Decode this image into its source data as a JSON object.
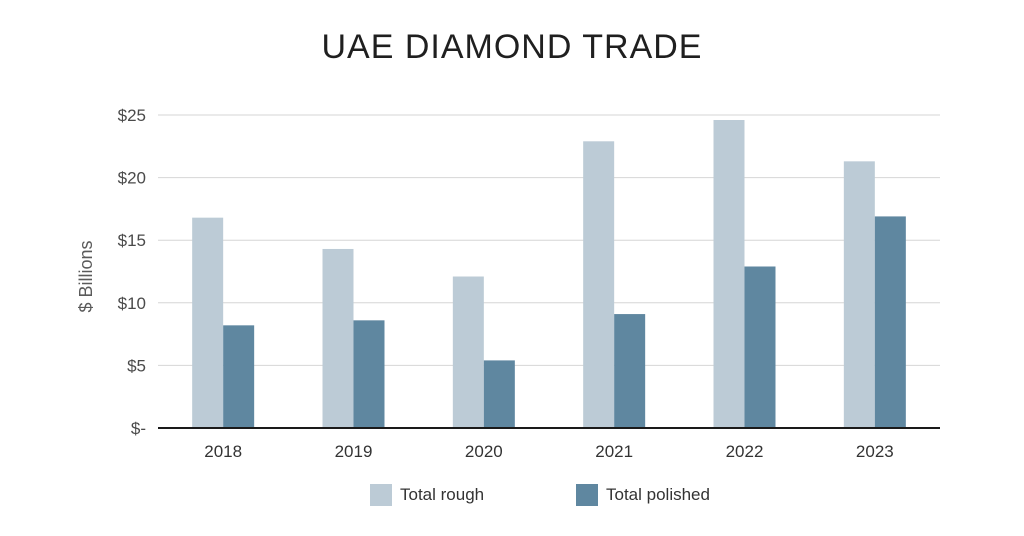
{
  "chart_data": {
    "type": "bar",
    "title": "UAE DIAMOND TRADE",
    "xlabel": "",
    "ylabel": "$ Billions",
    "categories": [
      "2018",
      "2019",
      "2020",
      "2021",
      "2022",
      "2023"
    ],
    "series": [
      {
        "name": "Total rough",
        "color": "#bccbd6",
        "values": [
          16.8,
          14.3,
          12.1,
          22.9,
          24.6,
          21.3
        ]
      },
      {
        "name": "Total polished",
        "color": "#5f87a0",
        "values": [
          8.2,
          8.6,
          5.4,
          9.1,
          12.9,
          16.9
        ]
      }
    ],
    "ylim": [
      0,
      25
    ],
    "yticks": [
      {
        "value": 0,
        "label": "$-"
      },
      {
        "value": 5,
        "label": "$5"
      },
      {
        "value": 10,
        "label": "$10"
      },
      {
        "value": 15,
        "label": "$15"
      },
      {
        "value": 20,
        "label": "$20"
      },
      {
        "value": 25,
        "label": "$25"
      }
    ],
    "grid": true,
    "legend_position": "bottom"
  }
}
